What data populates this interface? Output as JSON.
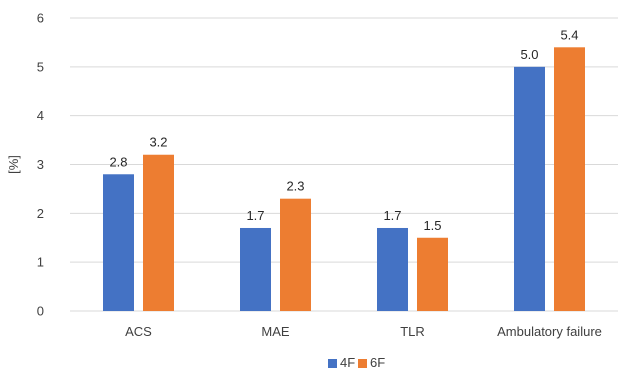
{
  "chart_data": {
    "type": "bar",
    "ylabel": "[%]",
    "ylim": [
      0,
      6
    ],
    "yticks": [
      0,
      1,
      2,
      3,
      4,
      5,
      6
    ],
    "grid": true,
    "legend_position": "bottom",
    "categories": [
      "ACS",
      "MAE",
      "TLR",
      "Ambulatory failure"
    ],
    "series": [
      {
        "name": "4F",
        "color": "#4472c4",
        "values": [
          2.8,
          1.7,
          1.7,
          5.0
        ],
        "labels": [
          "2.8",
          "1.7",
          "1.7",
          "5.0"
        ]
      },
      {
        "name": "6F",
        "color": "#ed7d31",
        "values": [
          3.2,
          2.3,
          1.5,
          5.4
        ],
        "labels": [
          "3.2",
          "2.3",
          "1.5",
          "5.4"
        ]
      }
    ]
  }
}
